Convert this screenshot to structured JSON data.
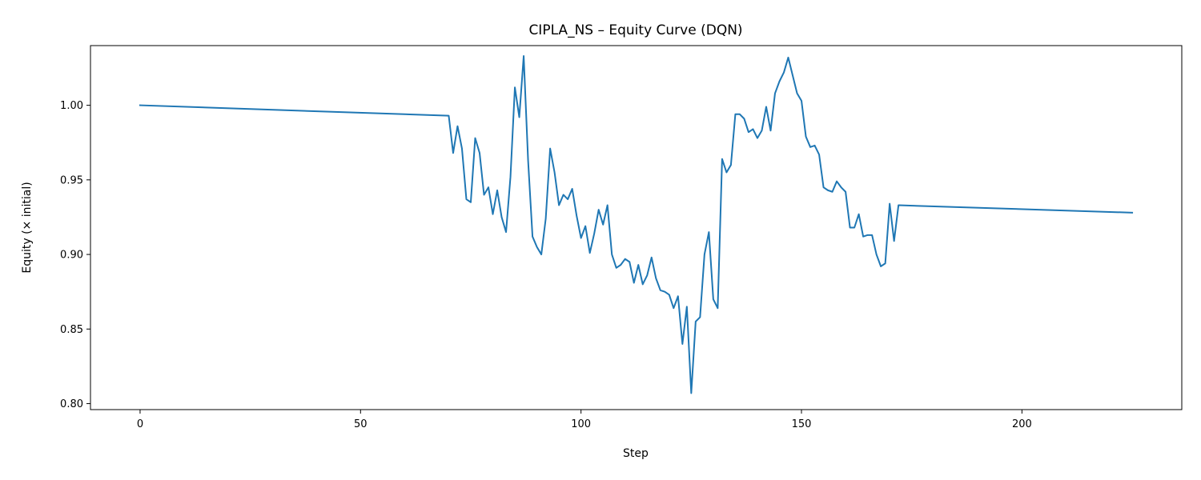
{
  "chart_data": {
    "type": "line",
    "title": "CIPLA_NS – Equity Curve (DQN)",
    "xlabel": "Step",
    "ylabel": "Equity (× initial)",
    "xlim": [
      -11.25,
      236.25
    ],
    "ylim": [
      0.796,
      1.04
    ],
    "xticks": [
      0,
      50,
      100,
      150,
      200
    ],
    "yticks": [
      0.8,
      0.85,
      0.9,
      0.95,
      1.0
    ],
    "ytick_labels": [
      "0.80",
      "0.85",
      "0.90",
      "0.95",
      "1.00"
    ],
    "grid": false,
    "legend": "none",
    "series": [
      {
        "color": "#1f77b4",
        "x": [
          0,
          70,
          71,
          72,
          73,
          74,
          75,
          76,
          77,
          78,
          79,
          80,
          81,
          82,
          83,
          84,
          85,
          86,
          87,
          88,
          89,
          90,
          91,
          92,
          93,
          94,
          95,
          96,
          97,
          98,
          99,
          100,
          101,
          102,
          103,
          104,
          105,
          106,
          107,
          108,
          109,
          110,
          111,
          112,
          113,
          114,
          115,
          116,
          117,
          118,
          119,
          120,
          121,
          122,
          123,
          124,
          125,
          126,
          127,
          128,
          129,
          130,
          131,
          132,
          133,
          134,
          135,
          136,
          137,
          138,
          139,
          140,
          141,
          142,
          143,
          144,
          145,
          146,
          147,
          148,
          149,
          150,
          151,
          152,
          153,
          154,
          155,
          156,
          157,
          158,
          159,
          160,
          161,
          162,
          163,
          164,
          165,
          166,
          167,
          168,
          169,
          170,
          171,
          172,
          225
        ],
        "y": [
          1.0,
          0.993,
          0.968,
          0.986,
          0.971,
          0.937,
          0.935,
          0.978,
          0.968,
          0.94,
          0.945,
          0.927,
          0.943,
          0.925,
          0.915,
          0.952,
          1.012,
          0.992,
          1.033,
          0.963,
          0.912,
          0.905,
          0.9,
          0.924,
          0.971,
          0.955,
          0.933,
          0.94,
          0.937,
          0.944,
          0.926,
          0.911,
          0.919,
          0.901,
          0.914,
          0.93,
          0.92,
          0.933,
          0.9,
          0.891,
          0.893,
          0.897,
          0.895,
          0.881,
          0.893,
          0.88,
          0.886,
          0.898,
          0.884,
          0.876,
          0.875,
          0.873,
          0.864,
          0.872,
          0.84,
          0.865,
          0.807,
          0.855,
          0.858,
          0.9,
          0.915,
          0.87,
          0.864,
          0.964,
          0.955,
          0.96,
          0.994,
          0.994,
          0.991,
          0.982,
          0.984,
          0.978,
          0.983,
          0.999,
          0.983,
          1.008,
          1.016,
          1.022,
          1.032,
          1.02,
          1.008,
          1.003,
          0.979,
          0.972,
          0.973,
          0.967,
          0.945,
          0.943,
          0.942,
          0.949,
          0.945,
          0.942,
          0.918,
          0.918,
          0.927,
          0.912,
          0.913,
          0.913,
          0.9,
          0.892,
          0.894,
          0.934,
          0.909,
          0.933,
          0.928
        ]
      }
    ]
  }
}
